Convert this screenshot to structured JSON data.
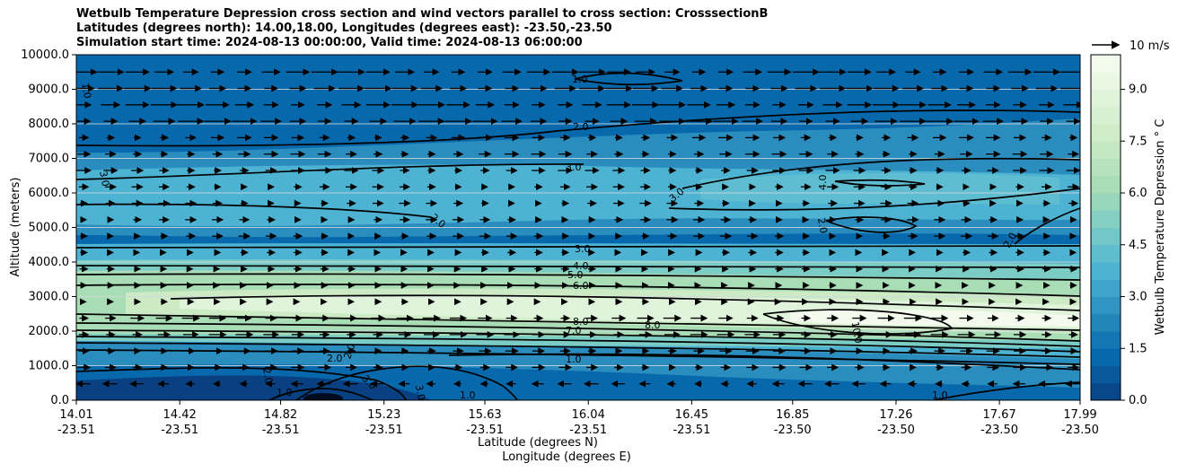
{
  "chart_data": {
    "type": "heatmap",
    "title": [
      "Wetbulb Temperature Depression cross section and wind vectors parallel to cross section: CrosssectionB",
      "Latitudes (degrees north): 14.00,18.00, Longitudes (degrees east): -23.50,-23.50",
      "Simulation start time: 2024-08-13 00:00:00, Valid time: 2024-08-13 06:00:00"
    ],
    "xlabel_1": "Latitude (degrees N)",
    "xlabel_2": "Longitude (degrees E)",
    "ylabel": "Altitude (meters)",
    "ylim": [
      0,
      10000
    ],
    "x_ticks": [
      {
        "lat": "14.01",
        "lon": "-23.51"
      },
      {
        "lat": "14.42",
        "lon": "-23.51"
      },
      {
        "lat": "14.82",
        "lon": "-23.51"
      },
      {
        "lat": "15.23",
        "lon": "-23.51"
      },
      {
        "lat": "15.63",
        "lon": "-23.51"
      },
      {
        "lat": "16.04",
        "lon": "-23.51"
      },
      {
        "lat": "16.45",
        "lon": "-23.51"
      },
      {
        "lat": "16.85",
        "lon": "-23.50"
      },
      {
        "lat": "17.26",
        "lon": "-23.50"
      },
      {
        "lat": "17.67",
        "lon": "-23.50"
      },
      {
        "lat": "17.99",
        "lon": "-23.50"
      }
    ],
    "y_ticks": [
      "0.0",
      "1000.0",
      "2000.0",
      "3000.0",
      "4000.0",
      "5000.0",
      "6000.0",
      "7000.0",
      "8000.0",
      "9000.0",
      "10000.0"
    ],
    "grid_y": true,
    "colorbar": {
      "label": "Wetbulb Temperature Depression $^\\circ$C",
      "label_text": "Wetbulb Temperature Depression ° C",
      "range": [
        0,
        10
      ],
      "ticks": [
        "0.0",
        "1.5",
        "3.0",
        "4.5",
        "6.0",
        "7.5",
        "9.0"
      ],
      "colormap": "GnBu_r",
      "colors": [
        "#084081",
        "#0868ac",
        "#2b8cbe",
        "#4eb3d3",
        "#7bccc4",
        "#a8ddb5",
        "#ccebc5",
        "#e0f3db",
        "#f7fcf0"
      ]
    },
    "wind_key": {
      "label": "10 m/s",
      "speed": 10
    },
    "profile": {
      "heights_m": [
        0,
        500,
        1000,
        1500,
        2000,
        2500,
        3000,
        3500,
        4000,
        4500,
        5000,
        5500,
        6000,
        6500,
        7000,
        7500,
        8000,
        8500,
        9000,
        9500,
        10000
      ],
      "depression_C_at_lat_16": [
        1.0,
        1.0,
        1.5,
        3.5,
        8.0,
        8.5,
        7.5,
        6.0,
        4.0,
        3.0,
        2.5,
        2.5,
        3.0,
        3.2,
        3.0,
        2.5,
        2.0,
        1.5,
        1.2,
        1.0,
        1.0
      ]
    },
    "contour_labels": [
      "1.0",
      "2.0",
      "3.0",
      "4.0",
      "5.0",
      "6.0",
      "7.0",
      "8.0",
      "10.0"
    ]
  }
}
